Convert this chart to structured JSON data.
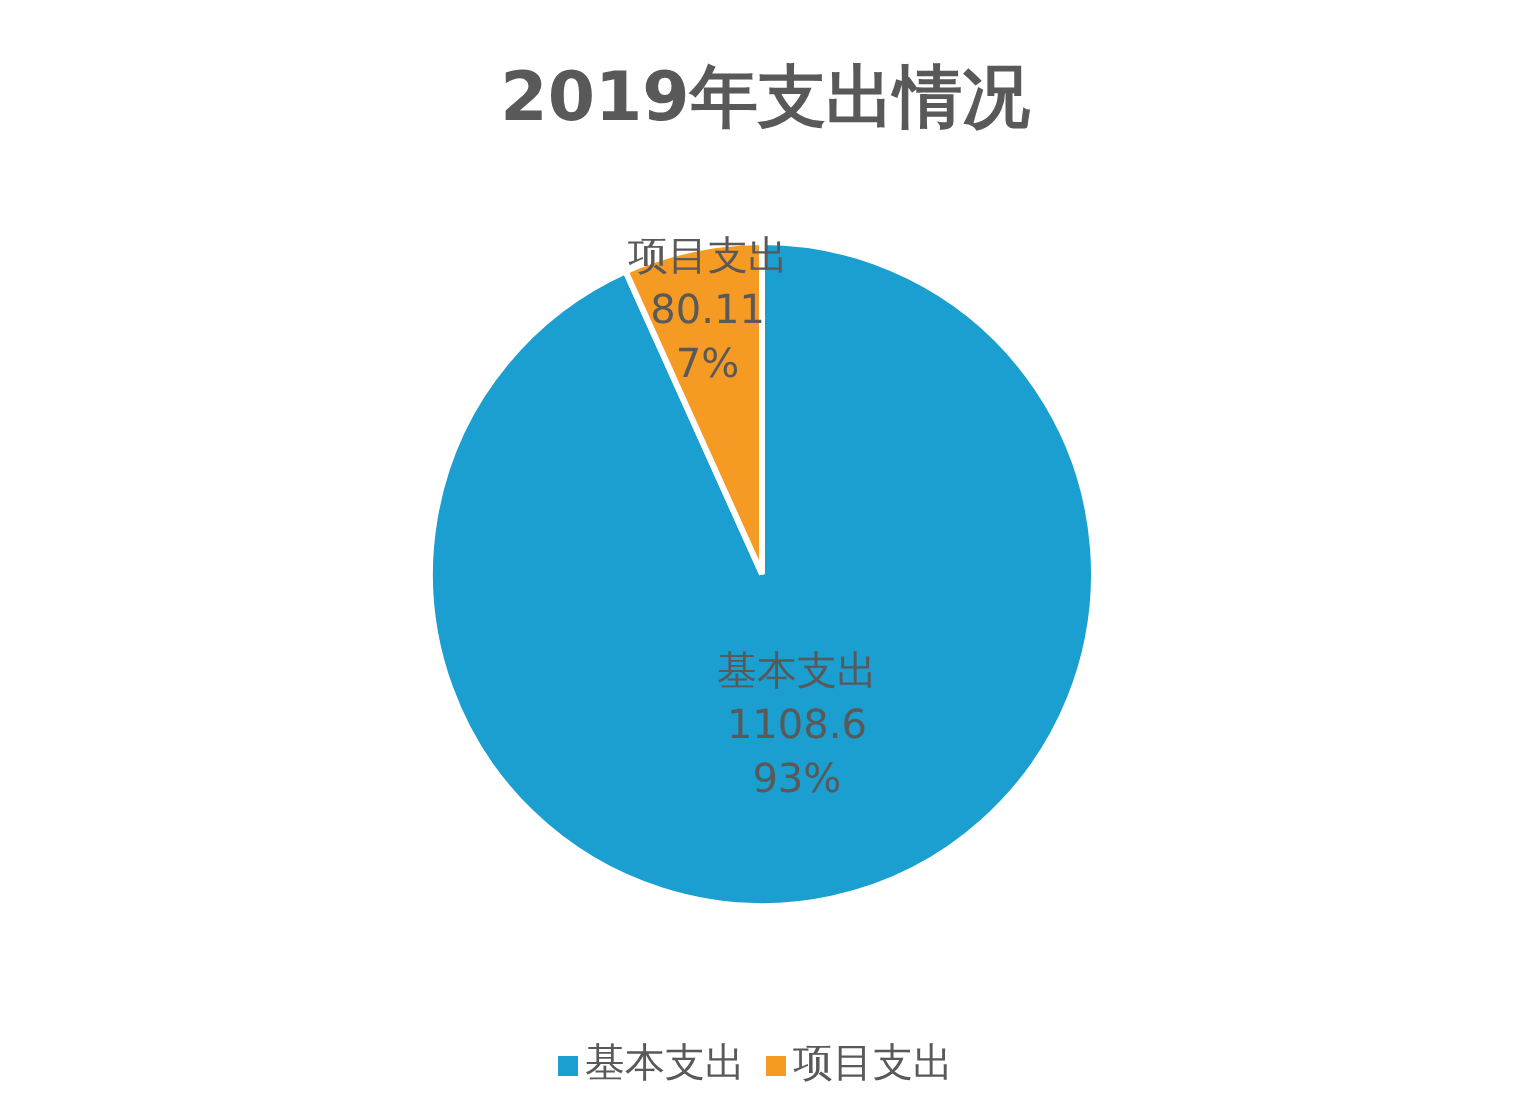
{
  "chart_data": {
    "type": "pie",
    "title": "2019年支出情况",
    "categories": [
      "基本支出",
      "项目支出"
    ],
    "values": [
      1108.6,
      80.11
    ],
    "value_labels": [
      "1108.6\n93%",
      "80.11\n7%"
    ],
    "colors": [
      "#1a9fd0",
      "#f59a23"
    ],
    "legend": "bottom"
  }
}
